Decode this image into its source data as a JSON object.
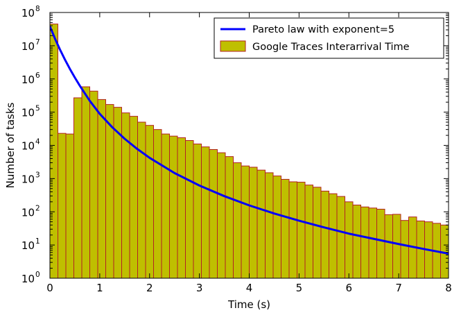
{
  "chart_data": {
    "type": "bar",
    "title": "",
    "xlabel": "Time (s)",
    "ylabel": "Number of tasks",
    "xlim": [
      0,
      8
    ],
    "ylim": [
      1,
      100000000
    ],
    "y_scale": "log",
    "grid": false,
    "legend_position": "top-right",
    "x_ticks": [
      "0",
      "1",
      "2",
      "3",
      "4",
      "5",
      "6",
      "7",
      "8"
    ],
    "y_ticks": [
      {
        "base": "10",
        "exp": "0"
      },
      {
        "base": "10",
        "exp": "1"
      },
      {
        "base": "10",
        "exp": "2"
      },
      {
        "base": "10",
        "exp": "3"
      },
      {
        "base": "10",
        "exp": "4"
      },
      {
        "base": "10",
        "exp": "5"
      },
      {
        "base": "10",
        "exp": "6"
      },
      {
        "base": "10",
        "exp": "7"
      },
      {
        "base": "10",
        "exp": "8"
      }
    ],
    "histogram": {
      "name": "Google Traces Interarrival Time",
      "color": "#bfbf00",
      "edge_color": "#b22222",
      "bin_width": 0.16,
      "bin_starts": [
        0,
        0.16,
        0.32,
        0.48,
        0.64,
        0.8,
        0.96,
        1.12,
        1.28,
        1.44,
        1.6,
        1.76,
        1.92,
        2.08,
        2.24,
        2.4,
        2.56,
        2.72,
        2.88,
        3.04,
        3.2,
        3.36,
        3.52,
        3.68,
        3.84,
        4.0,
        4.16,
        4.32,
        4.48,
        4.64,
        4.8,
        4.96,
        5.12,
        5.28,
        5.44,
        5.6,
        5.76,
        5.92,
        6.08,
        6.24,
        6.4,
        6.56,
        6.72,
        6.88,
        7.04,
        7.2,
        7.36,
        7.52,
        7.68,
        7.84
      ],
      "values": [
        45000000,
        23000,
        22000,
        270000,
        580000,
        430000,
        240000,
        170000,
        140000,
        95000,
        75000,
        50000,
        40000,
        30000,
        22000,
        19000,
        17000,
        14000,
        11000,
        9000,
        7500,
        6000,
        4600,
        3000,
        2400,
        2200,
        1800,
        1500,
        1200,
        950,
        800,
        780,
        640,
        550,
        420,
        350,
        290,
        200,
        160,
        140,
        130,
        120,
        82,
        84,
        55,
        70,
        53,
        50,
        45,
        40
      ]
    },
    "series": [
      {
        "name": "Pareto law with exponent=5",
        "color": "#0000ff",
        "type": "line",
        "x": [
          0,
          0.1,
          0.2,
          0.3,
          0.4,
          0.5,
          0.6,
          0.8,
          1.0,
          1.25,
          1.5,
          1.75,
          2.0,
          2.5,
          3.0,
          3.5,
          4.0,
          4.5,
          5.0,
          5.5,
          6.0,
          6.5,
          7.0,
          7.5,
          8.0
        ],
        "y": [
          38000000,
          16600000,
          7770000,
          3860000,
          2010000,
          1100000,
          623000,
          219000,
          89000,
          35200,
          15800,
          7850,
          4220,
          1470,
          618,
          296,
          156,
          89,
          54,
          34,
          22,
          15.3,
          10.7,
          7.6,
          5.5
        ]
      }
    ]
  }
}
